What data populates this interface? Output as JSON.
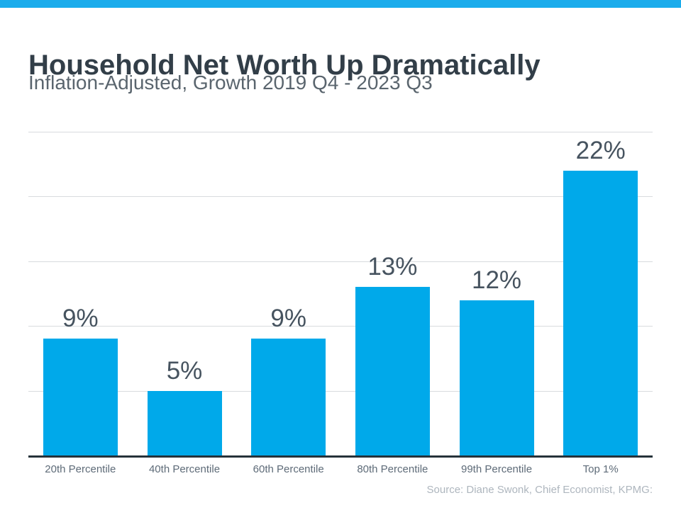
{
  "header": {
    "title": "Household Net Worth Up Dramatically",
    "subtitle": "Inflation-Adjusted, Growth 2019 Q4 - 2023 Q3"
  },
  "footer": {
    "source": "Source: Diane Swonk, Chief Economist, KPMG:"
  },
  "colors": {
    "accent_bar": "#1BACEC",
    "bar_fill": "#00A9EA",
    "title_text": "#323E48",
    "subtitle_text": "#5A656E",
    "value_label_text": "#46535F",
    "axis_label_text": "#5E6B78",
    "source_text": "#AEB6BE",
    "gridline": "#D8DBDE",
    "axis_line": "#26323A"
  },
  "chart_data": {
    "type": "bar",
    "title": "Household Net Worth Up Dramatically",
    "subtitle": "Inflation-Adjusted, Growth 2019 Q4 - 2023 Q3",
    "categories": [
      "20th Percentile",
      "40th Percentile",
      "60th Percentile",
      "80th Percentile",
      "99th Percentile",
      "Top 1%"
    ],
    "values": [
      9,
      5,
      9,
      13,
      12,
      22
    ],
    "labels": [
      "9%",
      "5%",
      "9%",
      "13%",
      "12%",
      "22%"
    ],
    "unit": "%",
    "xlabel": "",
    "ylabel": "",
    "ylim": [
      0,
      25
    ],
    "gridline_step": 5,
    "grid": true,
    "legend": "none",
    "value_labels_position": "above-bars",
    "source": "Source: Diane Swonk, Chief Economist, KPMG:"
  }
}
